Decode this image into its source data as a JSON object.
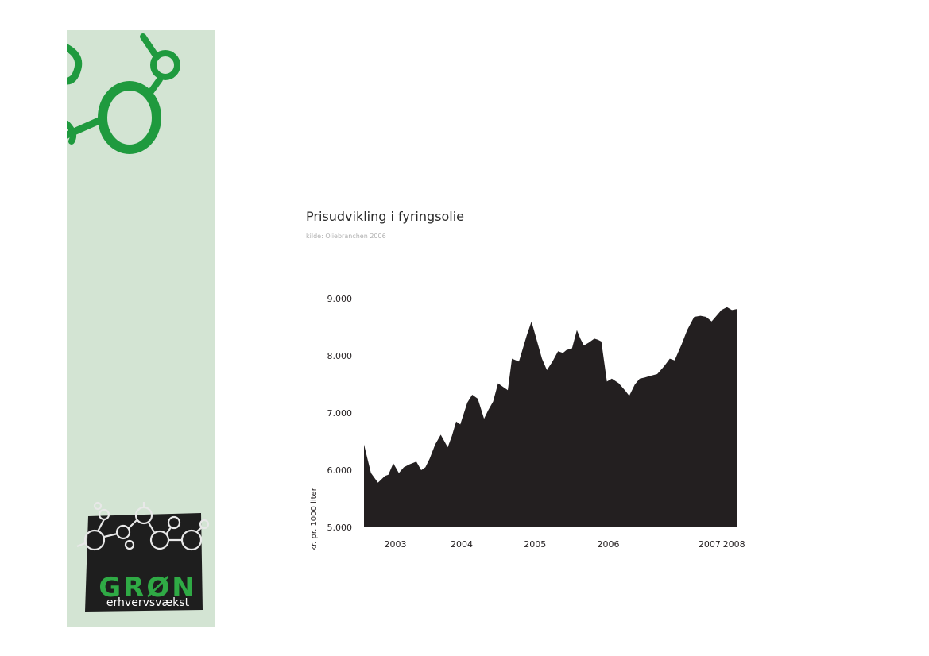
{
  "page": {
    "background": "#ffffff",
    "sidebar_color": "#d3e4d3",
    "accent_green": "#1f9a3e"
  },
  "logo": {
    "word": "GRØN",
    "subtitle": "erhvervsvækst",
    "word_color": "#2faa45",
    "box_color": "#1e1e1e"
  },
  "chart_data": {
    "type": "area",
    "title": "Prisudvikling i fyringsolie",
    "source": "kilde: Oliebranchen 2006",
    "ylabel": "kr. pr. 1000 liter",
    "xlabel": "",
    "ylim": [
      5000,
      9000
    ],
    "yticks": [
      {
        "value": 5000,
        "label": "5.000"
      },
      {
        "value": 6000,
        "label": "6.000"
      },
      {
        "value": 7000,
        "label": "7.000"
      },
      {
        "value": 8000,
        "label": "8.000"
      },
      {
        "value": 9000,
        "label": "9.000"
      }
    ],
    "xlim": [
      2002.7,
      2008.05
    ],
    "xticks": [
      {
        "value": 2003.15,
        "label": "2003"
      },
      {
        "value": 2004.1,
        "label": "2004"
      },
      {
        "value": 2005.15,
        "label": "2005"
      },
      {
        "value": 2006.2,
        "label": "2006"
      },
      {
        "value": 2007.65,
        "label": "2007"
      },
      {
        "value": 2008.0,
        "label": "2008"
      }
    ],
    "fill_color": "#231f20",
    "grid": false,
    "series": [
      {
        "x": [
          2002.7,
          2002.73,
          2002.8,
          2002.9,
          2003.0,
          2003.05,
          2003.12,
          2003.2,
          2003.27,
          2003.35,
          2003.45,
          2003.52,
          2003.58,
          2003.64,
          2003.72,
          2003.8,
          2003.9,
          2003.96,
          2004.02,
          2004.08,
          2004.18,
          2004.25,
          2004.33,
          2004.42,
          2004.48,
          2004.55,
          2004.62,
          2004.7,
          2004.76,
          2004.82,
          2004.92,
          2005.03,
          2005.1,
          2005.18,
          2005.25,
          2005.32,
          2005.4,
          2005.48,
          2005.55,
          2005.6,
          2005.68,
          2005.75,
          2005.8,
          2005.85,
          2005.92,
          2006.0,
          2006.05,
          2006.1,
          2006.18,
          2006.25,
          2006.35,
          2006.45,
          2006.5,
          2006.58,
          2006.65,
          2006.72,
          2006.8,
          2006.9,
          2007.0,
          2007.08,
          2007.15,
          2007.25,
          2007.33,
          2007.43,
          2007.52,
          2007.6,
          2007.68,
          2007.75,
          2007.82,
          2007.9,
          2007.97,
          2008.05
        ],
        "y": [
          6450,
          6300,
          5950,
          5780,
          5900,
          5920,
          6120,
          5950,
          6050,
          6100,
          6150,
          6000,
          6050,
          6200,
          6450,
          6620,
          6400,
          6600,
          6850,
          6800,
          7180,
          7320,
          7250,
          6900,
          7050,
          7200,
          7520,
          7450,
          7400,
          7950,
          7900,
          8350,
          8600,
          8250,
          7950,
          7750,
          7900,
          8080,
          8050,
          8100,
          8130,
          8450,
          8300,
          8180,
          8230,
          8300,
          8280,
          8250,
          7550,
          7600,
          7520,
          7380,
          7300,
          7500,
          7600,
          7620,
          7650,
          7680,
          7820,
          7950,
          7920,
          8200,
          8450,
          8680,
          8700,
          8680,
          8600,
          8700,
          8800,
          8850,
          8800,
          8820
        ]
      }
    ]
  }
}
